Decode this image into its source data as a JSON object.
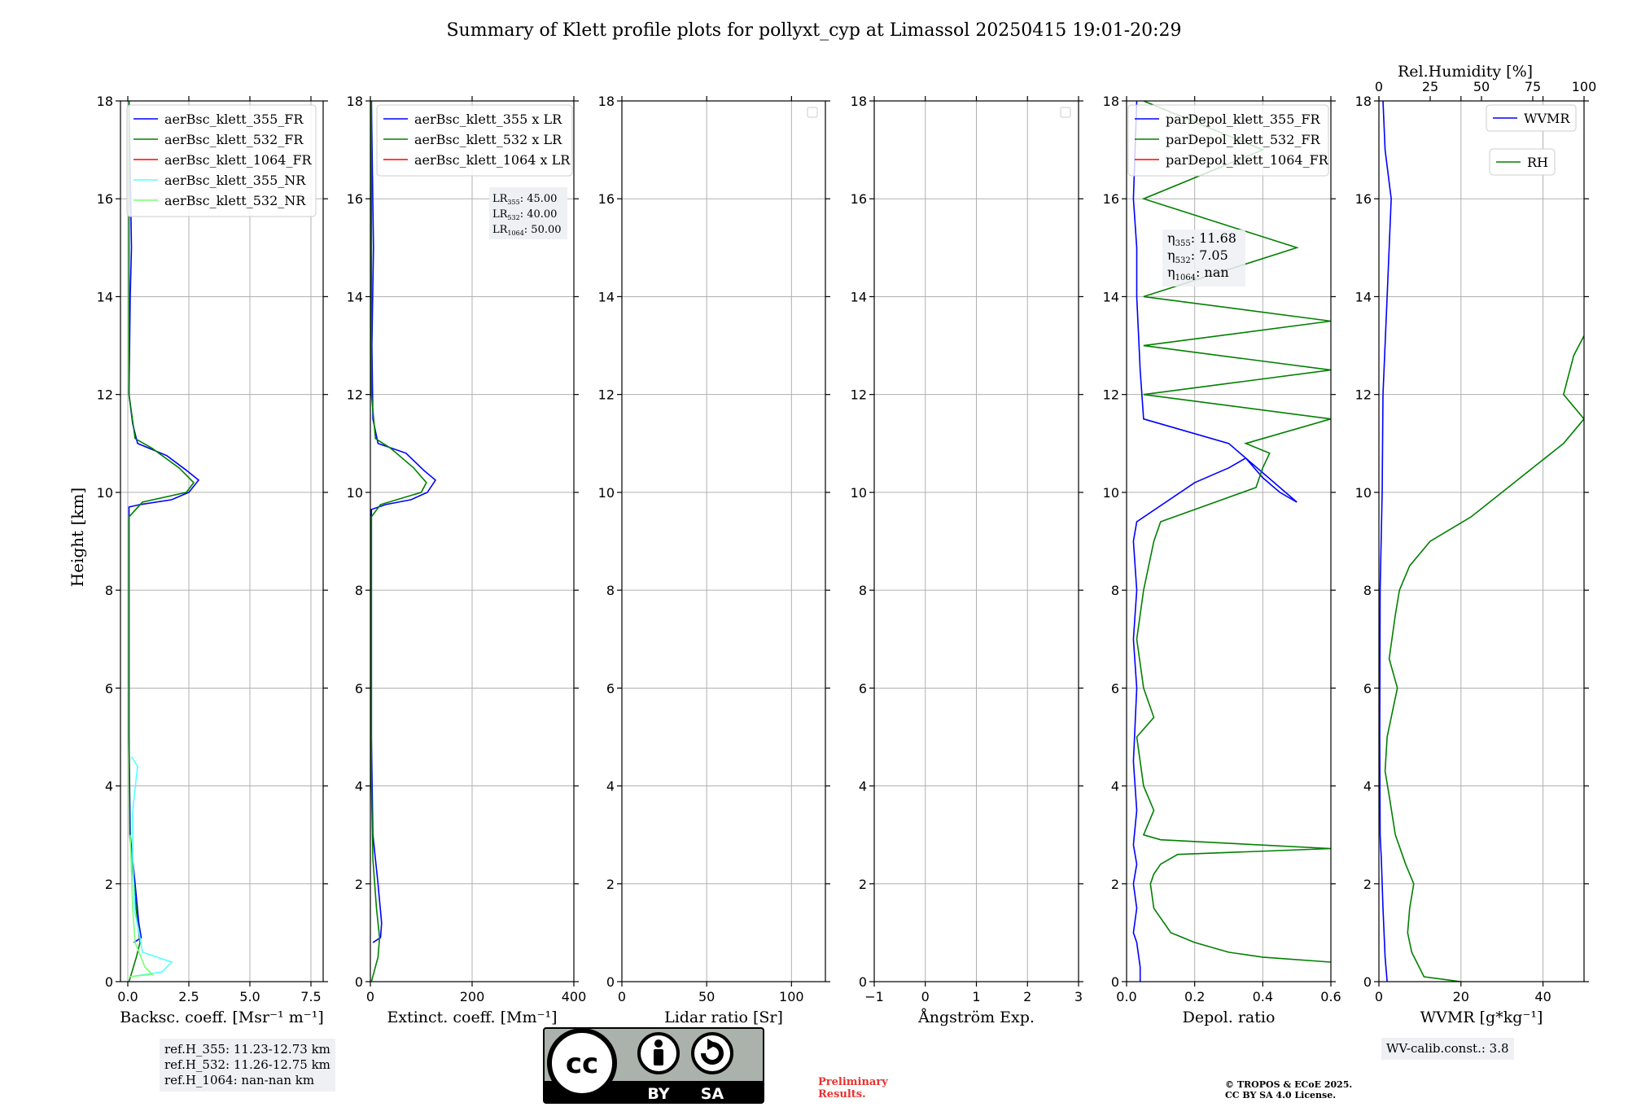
{
  "title": "Summary of Klett profile plots for pollyxt_cyp at Limassol 20250415 19:01-20:29",
  "ylabel": "Height [km]",
  "colors": {
    "b355": "#0000ff",
    "b532": "#008000",
    "b1064": "#ff0000",
    "nr355": "#55ffff",
    "nr532": "#77ff77"
  },
  "chart_data": [
    {
      "type": "line",
      "id": "bsc",
      "title": "",
      "xlabel": "Backsc. coeff. [Msr⁻¹ m⁻¹]",
      "ylabel": "Height [km]",
      "xlim": [
        -0.3,
        8.0
      ],
      "ylim": [
        0,
        18
      ],
      "xticks": [
        "0.0",
        "2.5",
        "5.0",
        "7.5"
      ],
      "xtick_values": [
        0,
        2.5,
        5,
        7.5
      ],
      "yticks": [
        "0",
        "2",
        "4",
        "6",
        "8",
        "10",
        "12",
        "14",
        "16",
        "18"
      ],
      "legend": [
        "aerBsc_klett_355_FR",
        "aerBsc_klett_532_FR",
        "aerBsc_klett_1064_FR",
        "aerBsc_klett_355_NR",
        "aerBsc_klett_532_NR"
      ],
      "series": [
        {
          "name": "aerBsc_klett_355_FR",
          "color": "#0000ff",
          "points": [
            [
              0.25,
              0.8
            ],
            [
              0.55,
              0.9
            ],
            [
              0.45,
              1.2
            ],
            [
              0.3,
              2.0
            ],
            [
              0.1,
              3.0
            ],
            [
              0.05,
              5.0
            ],
            [
              0.05,
              9.4
            ],
            [
              0.05,
              9.7
            ],
            [
              0.5,
              9.75
            ],
            [
              1.8,
              9.85
            ],
            [
              2.5,
              10.0
            ],
            [
              2.9,
              10.25
            ],
            [
              2.4,
              10.45
            ],
            [
              1.6,
              10.75
            ],
            [
              0.4,
              11.0
            ],
            [
              0.2,
              11.4
            ],
            [
              0.05,
              12.0
            ],
            [
              0.1,
              14.0
            ],
            [
              0.15,
              15.0
            ],
            [
              0.05,
              18.0
            ]
          ]
        },
        {
          "name": "aerBsc_klett_532_FR",
          "color": "#008000",
          "points": [
            [
              0.05,
              0.0
            ],
            [
              0.35,
              0.5
            ],
            [
              0.5,
              0.8
            ],
            [
              0.4,
              1.2
            ],
            [
              0.25,
              2.0
            ],
            [
              0.08,
              3.0
            ],
            [
              0.05,
              5.0
            ],
            [
              0.05,
              9.5
            ],
            [
              0.6,
              9.8
            ],
            [
              2.4,
              10.0
            ],
            [
              2.7,
              10.2
            ],
            [
              2.1,
              10.5
            ],
            [
              1.0,
              10.9
            ],
            [
              0.3,
              11.1
            ],
            [
              0.05,
              12.0
            ],
            [
              0.05,
              18.0
            ]
          ]
        },
        {
          "name": "aerBsc_klett_355_NR",
          "color": "#55ffff",
          "points": [
            [
              0.1,
              0.1
            ],
            [
              1.4,
              0.2
            ],
            [
              1.8,
              0.4
            ],
            [
              0.6,
              0.6
            ],
            [
              0.5,
              0.9
            ],
            [
              0.3,
              1.4
            ],
            [
              0.2,
              2.5
            ],
            [
              0.2,
              3.5
            ],
            [
              0.4,
              4.4
            ],
            [
              0.15,
              4.6
            ]
          ]
        },
        {
          "name": "aerBsc_klett_532_NR",
          "color": "#77ff77",
          "points": [
            [
              0.05,
              0.1
            ],
            [
              1.0,
              0.15
            ],
            [
              0.7,
              0.3
            ],
            [
              0.3,
              0.8
            ],
            [
              0.2,
              1.5
            ],
            [
              0.1,
              3.0
            ]
          ]
        }
      ]
    },
    {
      "type": "line",
      "id": "ext",
      "title": "",
      "xlabel": "Extinct. coeff. [Mm⁻¹]",
      "ylabel": "",
      "xlim": [
        0,
        400
      ],
      "ylim": [
        0,
        18
      ],
      "xticks": [
        "0",
        "200",
        "400"
      ],
      "xtick_values": [
        0,
        200,
        400
      ],
      "yticks": [
        "0",
        "2",
        "4",
        "6",
        "8",
        "10",
        "12",
        "14",
        "16",
        "18"
      ],
      "legend": [
        "aerBsc_klett_355 x LR",
        "aerBsc_klett_532 x LR",
        "aerBsc_klett_1064 x LR"
      ],
      "annotation": {
        "lines": [
          [
            "LR",
            "355",
            ": 45.00"
          ],
          [
            "LR",
            "532",
            ": 40.00"
          ],
          [
            "LR",
            "1064",
            ": 50.00"
          ]
        ]
      },
      "series": [
        {
          "name": "aerBsc_klett_355 x LR",
          "color": "#0000ff",
          "points": [
            [
              5,
              0.8
            ],
            [
              20,
              0.9
            ],
            [
              22,
              1.2
            ],
            [
              15,
              2.0
            ],
            [
              5,
              3.0
            ],
            [
              2,
              5.0
            ],
            [
              2,
              9.65
            ],
            [
              30,
              9.75
            ],
            [
              80,
              9.85
            ],
            [
              112,
              10.0
            ],
            [
              128,
              10.25
            ],
            [
              105,
              10.45
            ],
            [
              70,
              10.8
            ],
            [
              15,
              11.0
            ],
            [
              5,
              11.5
            ],
            [
              3,
              13.0
            ],
            [
              6,
              15.0
            ],
            [
              2,
              18.0
            ]
          ]
        },
        {
          "name": "aerBsc_klett_532 x LR",
          "color": "#008000",
          "points": [
            [
              2,
              0.0
            ],
            [
              15,
              0.5
            ],
            [
              18,
              0.9
            ],
            [
              12,
              1.5
            ],
            [
              5,
              2.5
            ],
            [
              2,
              4.0
            ],
            [
              2,
              9.5
            ],
            [
              20,
              9.75
            ],
            [
              100,
              10.0
            ],
            [
              110,
              10.2
            ],
            [
              85,
              10.5
            ],
            [
              40,
              10.9
            ],
            [
              10,
              11.1
            ],
            [
              2,
              12.0
            ],
            [
              2,
              18.0
            ]
          ]
        }
      ]
    },
    {
      "type": "line",
      "id": "lr",
      "title": "",
      "xlabel": "Lidar ratio [Sr]",
      "ylabel": "",
      "xlim": [
        0,
        120
      ],
      "ylim": [
        0,
        18
      ],
      "xticks": [
        "0",
        "50",
        "100"
      ],
      "xtick_values": [
        0,
        50,
        100
      ],
      "yticks": [
        "0",
        "2",
        "4",
        "6",
        "8",
        "10",
        "12",
        "14",
        "16",
        "18"
      ],
      "legend": [],
      "series": []
    },
    {
      "type": "line",
      "id": "ang",
      "title": "",
      "xlabel": "Ångström Exp.",
      "ylabel": "",
      "xlim": [
        -1,
        3
      ],
      "ylim": [
        0,
        18
      ],
      "xticks": [
        "−1",
        "0",
        "1",
        "2",
        "3"
      ],
      "xtick_values": [
        -1,
        0,
        1,
        2,
        3
      ],
      "yticks": [
        "0",
        "2",
        "4",
        "6",
        "8",
        "10",
        "12",
        "14",
        "16",
        "18"
      ],
      "legend": [],
      "series": []
    },
    {
      "type": "line",
      "id": "dep",
      "title": "",
      "xlabel": "Depol. ratio",
      "ylabel": "",
      "xlim": [
        0,
        0.6
      ],
      "ylim": [
        0,
        18
      ],
      "xticks": [
        "0.0",
        "0.2",
        "0.4",
        "0.6"
      ],
      "xtick_values": [
        0,
        0.2,
        0.4,
        0.6
      ],
      "yticks": [
        "0",
        "2",
        "4",
        "6",
        "8",
        "10",
        "12",
        "14",
        "16",
        "18"
      ],
      "legend": [
        "parDepol_klett_355_FR",
        "parDepol_klett_532_FR",
        "parDepol_klett_1064_FR"
      ],
      "annotation": {
        "lines": [
          [
            "η",
            "355",
            ": 11.68"
          ],
          [
            "η",
            "532",
            ": 7.05"
          ],
          [
            "η",
            "1064",
            ": nan"
          ]
        ]
      },
      "series": [
        {
          "name": "parDepol_klett_355_FR",
          "color": "#0000ff",
          "points": [
            [
              0.04,
              0.0
            ],
            [
              0.04,
              0.3
            ],
            [
              0.03,
              0.8
            ],
            [
              0.02,
              1.0
            ],
            [
              0.03,
              1.5
            ],
            [
              0.02,
              2.0
            ],
            [
              0.03,
              2.4
            ],
            [
              0.02,
              2.8
            ],
            [
              0.03,
              3.5
            ],
            [
              0.02,
              4.5
            ],
            [
              0.03,
              6.0
            ],
            [
              0.02,
              7.0
            ],
            [
              0.03,
              8.0
            ],
            [
              0.02,
              9.0
            ],
            [
              0.03,
              9.4
            ],
            [
              0.2,
              10.2
            ],
            [
              0.3,
              10.5
            ],
            [
              0.35,
              10.7
            ],
            [
              0.4,
              10.3
            ],
            [
              0.45,
              10.0
            ],
            [
              0.5,
              9.8
            ],
            [
              0.3,
              11.0
            ],
            [
              0.05,
              11.5
            ],
            [
              0.04,
              12.5
            ],
            [
              0.03,
              14.0
            ],
            [
              0.03,
              15.0
            ],
            [
              0.02,
              16.0
            ],
            [
              0.03,
              18.0
            ]
          ]
        },
        {
          "name": "parDepol_klett_532_FR",
          "color": "#008000",
          "points": [
            [
              0.6,
              0.4
            ],
            [
              0.4,
              0.5
            ],
            [
              0.3,
              0.6
            ],
            [
              0.2,
              0.8
            ],
            [
              0.13,
              1.0
            ],
            [
              0.08,
              1.5
            ],
            [
              0.07,
              2.0
            ],
            [
              0.08,
              2.2
            ],
            [
              0.1,
              2.4
            ],
            [
              0.15,
              2.6
            ],
            [
              0.6,
              2.72
            ],
            [
              0.1,
              2.9
            ],
            [
              0.05,
              3.0
            ],
            [
              0.08,
              3.5
            ],
            [
              0.05,
              4.0
            ],
            [
              0.03,
              5.0
            ],
            [
              0.08,
              5.4
            ],
            [
              0.05,
              6.0
            ],
            [
              0.03,
              7.0
            ],
            [
              0.05,
              8.0
            ],
            [
              0.08,
              9.0
            ],
            [
              0.1,
              9.4
            ],
            [
              0.38,
              10.1
            ],
            [
              0.4,
              10.5
            ],
            [
              0.42,
              10.8
            ],
            [
              0.35,
              11.0
            ],
            [
              0.6,
              11.5
            ],
            [
              0.05,
              12.0
            ],
            [
              0.6,
              12.5
            ],
            [
              0.05,
              13.0
            ],
            [
              0.6,
              13.5
            ],
            [
              0.05,
              14.0
            ],
            [
              0.5,
              15.0
            ],
            [
              0.05,
              16.0
            ],
            [
              0.4,
              17.0
            ],
            [
              0.05,
              18.0
            ]
          ]
        }
      ]
    },
    {
      "type": "line",
      "id": "wv",
      "title": "",
      "xlabel": "WVMR [g*kg⁻¹]",
      "ylabel": "",
      "xlim": [
        0,
        50
      ],
      "ylim": [
        0,
        18
      ],
      "xticks": [
        "0",
        "20",
        "40"
      ],
      "xtick_values": [
        0,
        20,
        40
      ],
      "x2label": "Rel.Humidity [%]",
      "x2lim": [
        0,
        100
      ],
      "x2ticks": [
        "0",
        "25",
        "50",
        "75",
        "100"
      ],
      "x2tick_values": [
        0,
        25,
        50,
        75,
        100
      ],
      "yticks": [
        "0",
        "2",
        "4",
        "6",
        "8",
        "10",
        "12",
        "14",
        "16",
        "18"
      ],
      "legend": [
        "WVMR",
        "RH"
      ],
      "series": [
        {
          "name": "WVMR",
          "color": "#0000ff",
          "axis": "x",
          "points": [
            [
              2.0,
              0.0
            ],
            [
              1.5,
              0.5
            ],
            [
              1.0,
              1.5
            ],
            [
              0.6,
              2.5
            ],
            [
              0.3,
              3.0
            ],
            [
              0.2,
              5.0
            ],
            [
              0.3,
              8.0
            ],
            [
              0.8,
              10.0
            ],
            [
              1.0,
              12.0
            ],
            [
              2.0,
              14.0
            ],
            [
              3.0,
              16.0
            ],
            [
              1.5,
              17.0
            ],
            [
              1.0,
              18.0
            ]
          ]
        },
        {
          "name": "RH",
          "color": "#008000",
          "axis": "x2",
          "points": [
            [
              40,
              0.0
            ],
            [
              22,
              0.1
            ],
            [
              16,
              0.6
            ],
            [
              14,
              1.0
            ],
            [
              15,
              1.5
            ],
            [
              17,
              2.0
            ],
            [
              13,
              2.4
            ],
            [
              8,
              3.0
            ],
            [
              5,
              3.8
            ],
            [
              3,
              4.3
            ],
            [
              4,
              5.0
            ],
            [
              7,
              5.6
            ],
            [
              9,
              6.0
            ],
            [
              5,
              6.6
            ],
            [
              8,
              7.5
            ],
            [
              10,
              8.0
            ],
            [
              15,
              8.5
            ],
            [
              25,
              9.0
            ],
            [
              45,
              9.5
            ],
            [
              60,
              10.0
            ],
            [
              75,
              10.5
            ],
            [
              90,
              11.0
            ],
            [
              100,
              11.5
            ],
            [
              90,
              12.0
            ],
            [
              95,
              12.8
            ],
            [
              100,
              13.2
            ]
          ]
        }
      ]
    }
  ],
  "ref_box": [
    "ref.H_355: 11.23-12.73 km",
    "ref.H_532: 11.26-12.75 km",
    "ref.H_1064: nan-nan km"
  ],
  "wv_calib": "WV-calib.const.: 3.8",
  "cc": {
    "cc": "cc",
    "by": "BY",
    "sa": "SA"
  },
  "preliminary": [
    "Preliminary",
    "Results."
  ],
  "copyright": [
    "© TROPOS & ECoE 2025.",
    "CC BY SA 4.0 License."
  ]
}
